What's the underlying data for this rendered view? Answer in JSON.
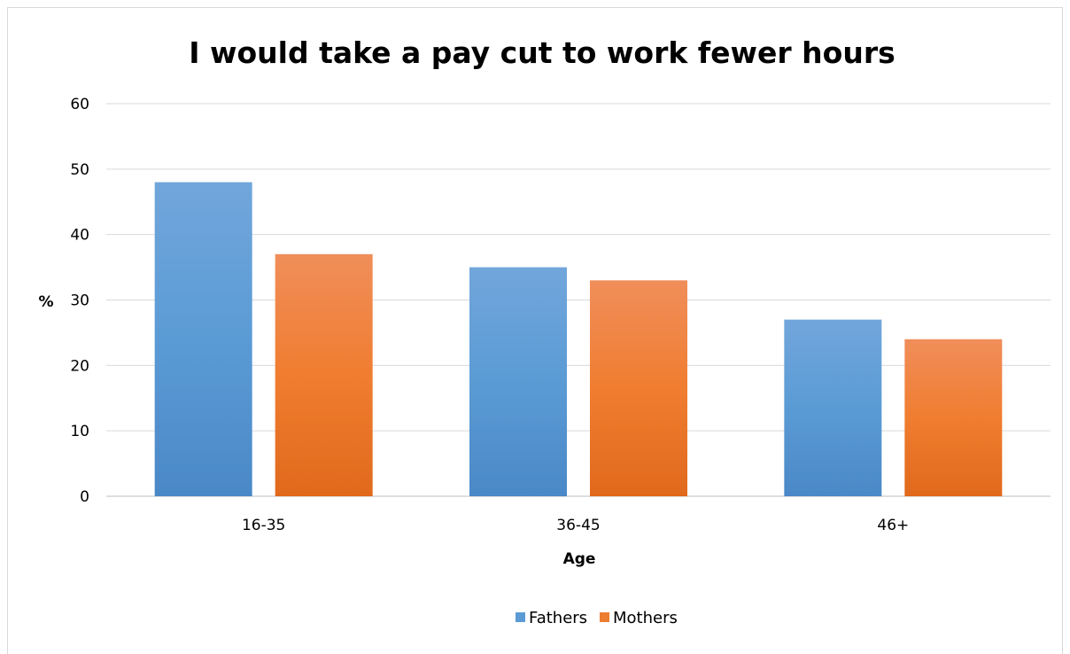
{
  "chart_data": {
    "type": "bar",
    "title": "I would take a pay cut to work fewer hours",
    "xlabel": "Age",
    "ylabel": "%",
    "categories": [
      "16-35",
      "36-45",
      "46+"
    ],
    "series": [
      {
        "name": "Fathers",
        "values": [
          48,
          35,
          27
        ],
        "color": "#5b9bd5"
      },
      {
        "name": "Mothers",
        "values": [
          37,
          33,
          24
        ],
        "color": "#ed7d31"
      }
    ],
    "ylim": [
      0,
      60
    ],
    "yticks": [
      0,
      10,
      20,
      30,
      40,
      50,
      60
    ],
    "grid": true,
    "legend_position": "bottom"
  }
}
